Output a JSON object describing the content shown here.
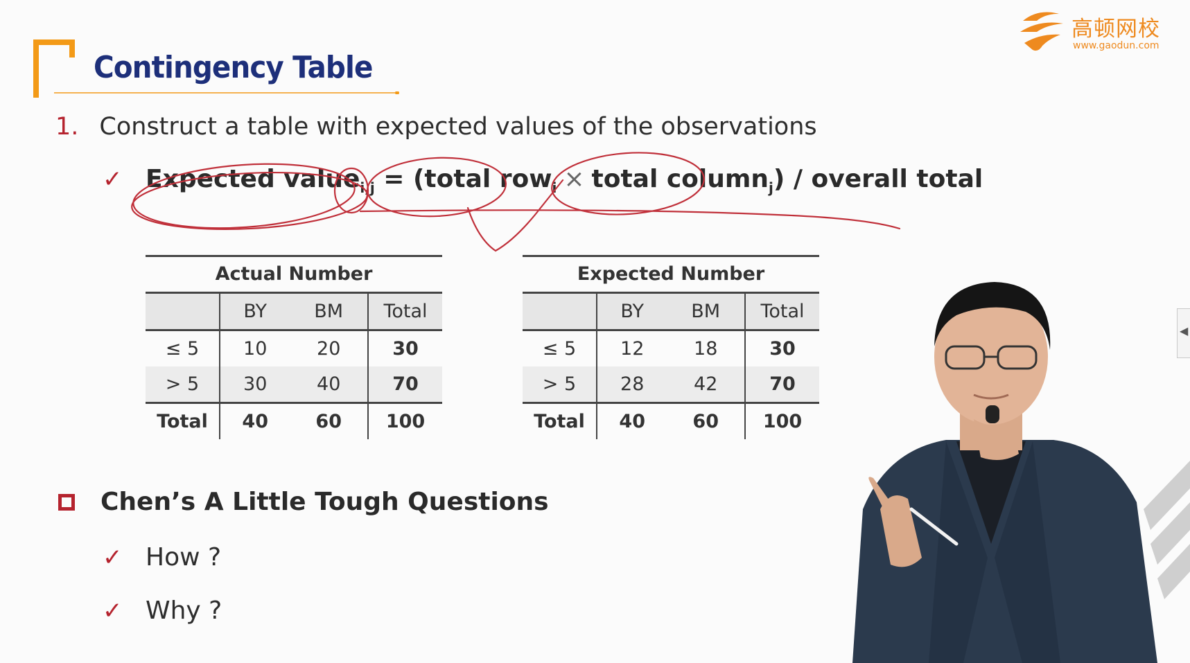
{
  "header": {
    "title": "Contingency Table",
    "logo_text": "高顿网校",
    "logo_url": "www.gaodun.com"
  },
  "step": {
    "number": "1.",
    "text": "Construct a table with expected values of the observations"
  },
  "formula": {
    "check": "✓",
    "lhs": "Expected value",
    "lhs_sub": "i,j",
    "eq": " = (total row",
    "row_sub": "i",
    "times": "×",
    "col": "total column",
    "col_sub": "j",
    "rest": ") / overall total"
  },
  "actual_table": {
    "caption": "Actual Number",
    "headers": [
      "",
      "BY",
      "BM",
      "Total"
    ],
    "rows": [
      [
        "≤ 5",
        "10",
        "20",
        "30"
      ],
      [
        "> 5",
        "30",
        "40",
        "70"
      ],
      [
        "Total",
        "40",
        "60",
        "100"
      ]
    ]
  },
  "expected_table": {
    "caption": "Expected Number",
    "headers": [
      "",
      "BY",
      "BM",
      "Total"
    ],
    "rows": [
      [
        "≤ 5",
        "12",
        "18",
        "30"
      ],
      [
        "> 5",
        "28",
        "42",
        "70"
      ],
      [
        "Total",
        "40",
        "60",
        "100"
      ]
    ]
  },
  "section2": {
    "title": "Chen’s A Little Tough Questions",
    "items": [
      "How ?",
      "Why ?"
    ]
  },
  "colors": {
    "title_blue": "#1d2f7a",
    "accent_red": "#b5232e",
    "bracket_orange": "#f39a17",
    "ink_red": "#c0303a"
  },
  "icons": {
    "side_tab": "chevron-left-icon",
    "logo": "gaodun-logo-icon"
  }
}
